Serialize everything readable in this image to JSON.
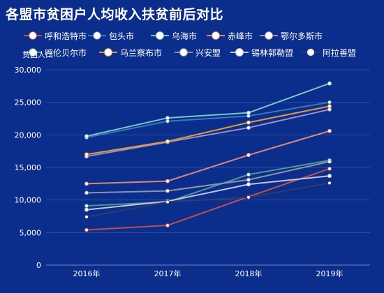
{
  "title": "各盟市贫困户人均收入扶贫前后对比",
  "chart_data": {
    "type": "line",
    "title": "各盟市贫困户人均收入扶贫前后对比",
    "ylabel": "贫困人口",
    "xlabel": "",
    "categories": [
      "2016年",
      "2017年",
      "2018年",
      "2019年"
    ],
    "ylim": [
      0,
      30000
    ],
    "yticks": [
      0,
      5000,
      10000,
      15000,
      20000,
      25000,
      30000
    ],
    "ytick_labels": [
      "0",
      "5,000",
      "10,000",
      "15,000",
      "20,000",
      "25,000",
      "30,000"
    ],
    "grid": true,
    "legend_position": "top",
    "series": [
      {
        "name": "呼和浩特市",
        "color": "#c0504d",
        "values": [
          5400,
          6100,
          10500,
          14800
        ]
      },
      {
        "name": "包头市",
        "color": "#3a78b8",
        "values": [
          19600,
          22100,
          22900,
          25000
        ]
      },
      {
        "name": "乌海市",
        "color": "#7cc6c8",
        "values": [
          19800,
          22600,
          23400,
          27900
        ]
      },
      {
        "name": "赤峰市",
        "color": "#d9887a",
        "values": [
          12500,
          12900,
          16900,
          20600
        ]
      },
      {
        "name": "鄂尔多斯市",
        "color": "#9f8ec6",
        "values": [
          16700,
          18900,
          21100,
          23900
        ]
      },
      {
        "name": "呼伦贝尔市",
        "color": "#4a9b92",
        "values": [
          9100,
          9700,
          13900,
          16100
        ]
      },
      {
        "name": "乌兰察布市",
        "color": "#e09a3e",
        "values": [
          17000,
          19000,
          21900,
          24400
        ]
      },
      {
        "name": "兴安盟",
        "color": "#8c95a8",
        "values": [
          11100,
          11400,
          13100,
          15900
        ]
      },
      {
        "name": "锡林郭勒盟",
        "color": "#c8c0dc",
        "values": [
          8500,
          9800,
          12400,
          13700
        ]
      },
      {
        "name": "阿拉善盟",
        "color": "#2f3e66",
        "values": [
          7400,
          9700,
          10400,
          12600
        ]
      }
    ]
  }
}
